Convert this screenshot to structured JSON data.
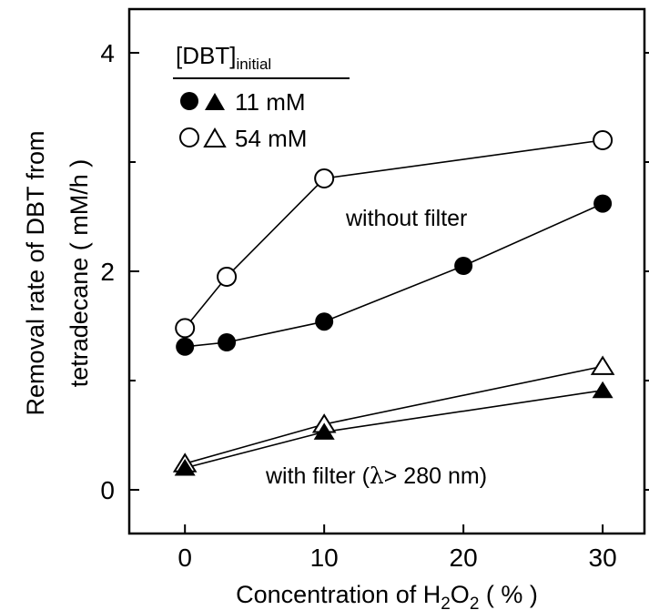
{
  "chart_data": {
    "type": "line",
    "xlabel_main": "Concentration of H",
    "xlabel_sub1": "2",
    "xlabel_mid": "O",
    "xlabel_sub2": "2",
    "xlabel_unit": " ( % )",
    "ylabel_line1": "Removal rate of DBT from",
    "ylabel_line2": "tetradecane ( mM/h )",
    "xlim": [
      -4,
      33
    ],
    "ylim": [
      -0.4,
      4.4
    ],
    "x_ticks": [
      0,
      10,
      20,
      30
    ],
    "y_ticks": [
      0,
      2,
      4
    ],
    "y_minor_ticks": [
      1,
      3
    ],
    "x_tick_labels": [
      "0",
      "10",
      "20",
      "30"
    ],
    "y_tick_labels": [
      "0",
      "2",
      "4"
    ],
    "legend": {
      "title_main": "[DBT]",
      "title_sub": "initial",
      "entries": [
        {
          "markers": [
            "filled-circle",
            "filled-triangle"
          ],
          "label": "11 mM"
        },
        {
          "markers": [
            "open-circle",
            "open-triangle"
          ],
          "label": "54 mM"
        }
      ]
    },
    "annotations": {
      "without_filter": "without filter",
      "with_filter_pre": "with filter (",
      "with_filter_lambda": "λ",
      "with_filter_post": "> 280 nm)"
    },
    "series": [
      {
        "marker": "open-circle",
        "x": [
          0,
          3,
          10,
          30
        ],
        "y": [
          1.48,
          1.95,
          2.85,
          3.2
        ]
      },
      {
        "marker": "filled-circle",
        "x": [
          0,
          3,
          10,
          20,
          30
        ],
        "y": [
          1.31,
          1.35,
          1.54,
          2.05,
          2.62
        ]
      },
      {
        "marker": "open-triangle",
        "x": [
          0,
          10,
          30
        ],
        "y": [
          0.24,
          0.6,
          1.13
        ]
      },
      {
        "marker": "filled-triangle",
        "x": [
          0,
          10,
          30
        ],
        "y": [
          0.2,
          0.53,
          0.91
        ]
      }
    ]
  }
}
